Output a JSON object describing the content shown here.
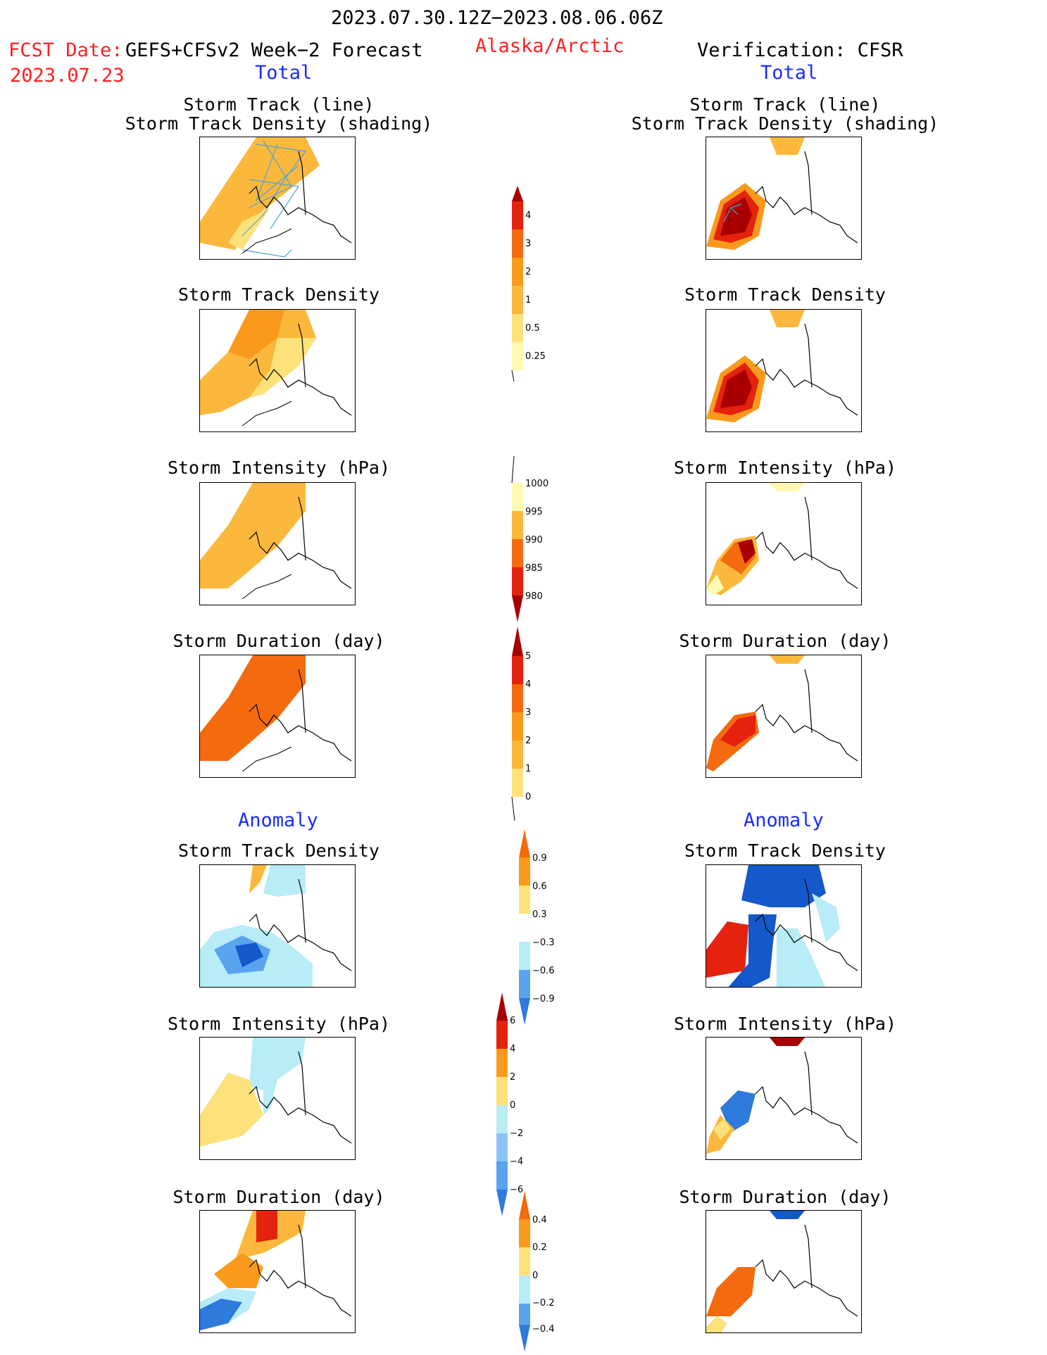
{
  "header": {
    "period": "2023.07.30.12Z−2023.08.06.06Z",
    "fcst_label": "FCST Date:",
    "fcst_model": "GEFS+CFSv2 Week−2 Forecast",
    "fcst_date": "2023.07.23",
    "region": "Alaska/Arctic",
    "verification": "Verification: CFSR"
  },
  "columns": {
    "left_total": "Total",
    "right_total": "Total",
    "left_anomaly": "Anomaly",
    "right_anomaly": "Anomaly"
  },
  "titles": {
    "track_line": "Storm Track (line)",
    "track_density_shading": "Storm Track Density (shading)",
    "track_density": "Storm Track Density",
    "intensity": "Storm Intensity (hPa)",
    "duration": "Storm Duration (day)"
  },
  "colorbars": {
    "density": {
      "labels": [
        "4",
        "3",
        "2",
        "1",
        "0.5",
        "0.25"
      ]
    },
    "intensity": {
      "labels": [
        "1000",
        "995",
        "990",
        "985",
        "980"
      ]
    },
    "duration": {
      "labels": [
        "5",
        "4",
        "3",
        "2",
        "1",
        "0"
      ]
    },
    "density_anom": {
      "labels": [
        "0.9",
        "0.6",
        "0.3",
        "−0.3",
        "−0.6",
        "−0.9"
      ]
    },
    "intensity_anom": {
      "labels": [
        "6",
        "4",
        "2",
        "0",
        "−2",
        "−4",
        "−6"
      ]
    },
    "duration_anom": {
      "labels": [
        "0.4",
        "0.2",
        "0",
        "−0.2",
        "−0.4"
      ]
    }
  },
  "colors": {
    "warm": [
      "#fff9b3",
      "#fde17a",
      "#fbb83c",
      "#f99a1c",
      "#f46a0f",
      "#e4220d",
      "#a80000"
    ],
    "cool": [
      "#ffffff",
      "#b8ecf7",
      "#8cc5f5",
      "#5aa3ee",
      "#2e7bdc",
      "#1458c9"
    ]
  }
}
